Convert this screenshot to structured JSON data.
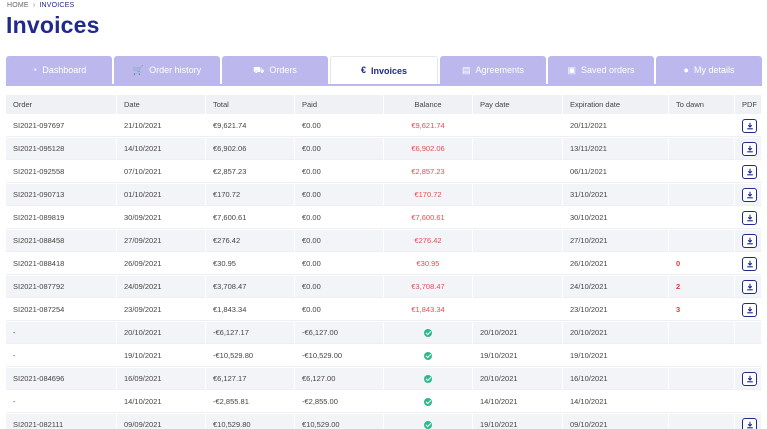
{
  "breadcrumb": {
    "home": "HOME",
    "separator": "›",
    "current": "INVOICES"
  },
  "page": {
    "title": "Invoices"
  },
  "tabs": [
    {
      "label": "Dashboard",
      "icon": "dashboard-icon",
      "glyph": "◔",
      "active": false
    },
    {
      "label": "Order history",
      "icon": "cart-icon",
      "glyph": "🛒",
      "active": false
    },
    {
      "label": "Orders",
      "icon": "truck-icon",
      "glyph": "⛟",
      "active": false
    },
    {
      "label": "Invoices",
      "icon": "euro-icon",
      "glyph": "€",
      "active": true
    },
    {
      "label": "Agreements",
      "icon": "document-icon",
      "glyph": "▤",
      "active": false
    },
    {
      "label": "Saved orders",
      "icon": "save-icon",
      "glyph": "▣",
      "active": false
    },
    {
      "label": "My details",
      "icon": "user-icon",
      "glyph": "●",
      "active": false
    }
  ],
  "table": {
    "headers": {
      "order": "Order",
      "date": "Date",
      "total": "Total",
      "paid": "Paid",
      "balance": "Balance",
      "pay_date": "Pay date",
      "expiration": "Expiration date",
      "to_dawn": "To dawn",
      "pdf": "PDF"
    },
    "rows": [
      {
        "order": "SI2021-097697",
        "date": "21/10/2021",
        "total": "€9,621.74",
        "paid": "€0.00",
        "balance": "€9,621.74",
        "balance_state": "negative",
        "pay_date": "",
        "expiration": "20/11/2021",
        "to_dawn": "",
        "pdf": true
      },
      {
        "order": "SI2021-095128",
        "date": "14/10/2021",
        "total": "€6,902.06",
        "paid": "€0.00",
        "balance": "€6,902.06",
        "balance_state": "negative",
        "pay_date": "",
        "expiration": "13/11/2021",
        "to_dawn": "",
        "pdf": true
      },
      {
        "order": "SI2021-092558",
        "date": "07/10/2021",
        "total": "€2,857.23",
        "paid": "€0.00",
        "balance": "€2,857.23",
        "balance_state": "negative",
        "pay_date": "",
        "expiration": "06/11/2021",
        "to_dawn": "",
        "pdf": true
      },
      {
        "order": "SI2021-090713",
        "date": "01/10/2021",
        "total": "€170.72",
        "paid": "€0.00",
        "balance": "€170.72",
        "balance_state": "negative",
        "pay_date": "",
        "expiration": "31/10/2021",
        "to_dawn": "",
        "pdf": true
      },
      {
        "order": "SI2021-089819",
        "date": "30/09/2021",
        "total": "€7,600.61",
        "paid": "€0.00",
        "balance": "€7,600.61",
        "balance_state": "negative",
        "pay_date": "",
        "expiration": "30/10/2021",
        "to_dawn": "",
        "pdf": true
      },
      {
        "order": "SI2021-088458",
        "date": "27/09/2021",
        "total": "€276.42",
        "paid": "€0.00",
        "balance": "€276.42",
        "balance_state": "negative",
        "pay_date": "",
        "expiration": "27/10/2021",
        "to_dawn": "",
        "pdf": true
      },
      {
        "order": "SI2021-088418",
        "date": "26/09/2021",
        "total": "€30.95",
        "paid": "€0.00",
        "balance": "€30.95",
        "balance_state": "negative",
        "pay_date": "",
        "expiration": "26/10/2021",
        "to_dawn": "0",
        "pdf": true
      },
      {
        "order": "SI2021-087792",
        "date": "24/09/2021",
        "total": "€3,708.47",
        "paid": "€0.00",
        "balance": "€3,708.47",
        "balance_state": "negative",
        "pay_date": "",
        "expiration": "24/10/2021",
        "to_dawn": "2",
        "pdf": true
      },
      {
        "order": "SI2021-087254",
        "date": "23/09/2021",
        "total": "€1,843.34",
        "paid": "€0.00",
        "balance": "€1,843.34",
        "balance_state": "negative",
        "pay_date": "",
        "expiration": "23/10/2021",
        "to_dawn": "3",
        "pdf": true
      },
      {
        "order": "-",
        "date": "20/10/2021",
        "total": "-€6,127.17",
        "paid": "-€6,127.00",
        "balance": "",
        "balance_state": "paid",
        "pay_date": "20/10/2021",
        "expiration": "20/10/2021",
        "to_dawn": "",
        "pdf": false
      },
      {
        "order": "-",
        "date": "19/10/2021",
        "total": "-€10,529.80",
        "paid": "-€10,529.00",
        "balance": "",
        "balance_state": "paid",
        "pay_date": "19/10/2021",
        "expiration": "19/10/2021",
        "to_dawn": "",
        "pdf": false
      },
      {
        "order": "SI2021-084696",
        "date": "16/09/2021",
        "total": "€6,127.17",
        "paid": "€6,127.00",
        "balance": "",
        "balance_state": "paid",
        "pay_date": "20/10/2021",
        "expiration": "16/10/2021",
        "to_dawn": "",
        "pdf": true
      },
      {
        "order": "-",
        "date": "14/10/2021",
        "total": "-€2,855.81",
        "paid": "-€2,855.00",
        "balance": "",
        "balance_state": "paid",
        "pay_date": "14/10/2021",
        "expiration": "14/10/2021",
        "to_dawn": "",
        "pdf": false
      },
      {
        "order": "SI2021-082111",
        "date": "09/09/2021",
        "total": "€10,529.80",
        "paid": "€10,529.00",
        "balance": "",
        "balance_state": "paid",
        "pay_date": "19/10/2021",
        "expiration": "09/10/2021",
        "to_dawn": "",
        "pdf": true
      }
    ]
  },
  "colors": {
    "accent": "#1f2a8a",
    "tab_bg": "#bcb8ee",
    "negative": "#e84b55",
    "paid": "#2fb88a"
  }
}
